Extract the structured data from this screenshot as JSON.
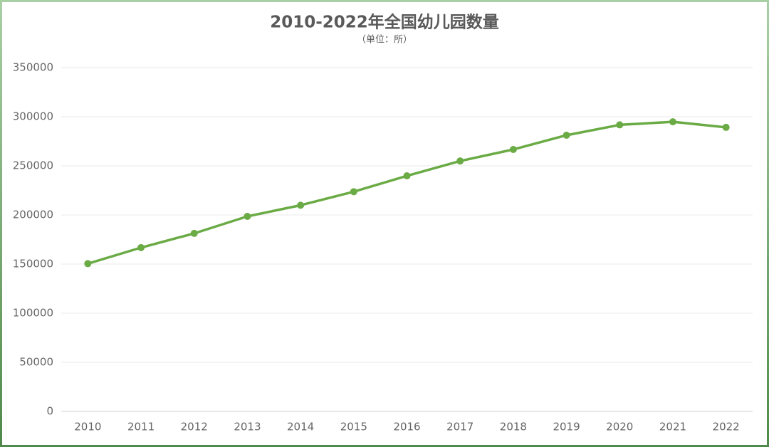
{
  "chart_data": {
    "type": "line",
    "title": "2010-2022年全国幼儿园数量",
    "subtitle": "（单位：所）",
    "categories": [
      "2010",
      "2011",
      "2012",
      "2013",
      "2014",
      "2015",
      "2016",
      "2017",
      "2018",
      "2019",
      "2020",
      "2021",
      "2022"
    ],
    "series": [
      {
        "name": "幼儿园数量",
        "color": "#6aab45",
        "values": [
          150420,
          166750,
          181251,
          198553,
          209881,
          223683,
          239812,
          254950,
          266677,
          281174,
          291715,
          294832,
          289200
        ]
      }
    ],
    "ylim": [
      0,
      350000
    ],
    "yticks": [
      0,
      50000,
      100000,
      150000,
      200000,
      250000,
      300000,
      350000
    ],
    "grid": true
  }
}
